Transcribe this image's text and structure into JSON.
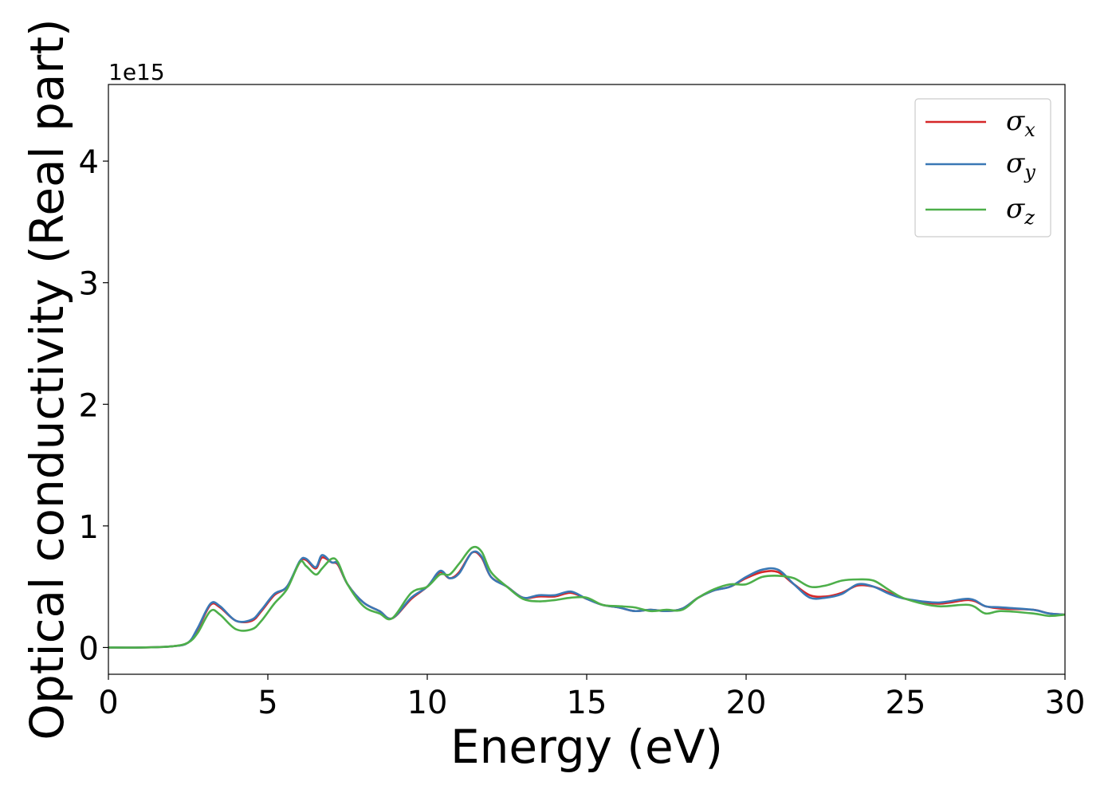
{
  "chart_data": {
    "type": "line",
    "xlabel": "Energy (eV)",
    "ylabel": "Optical conductivity (Real part)",
    "y_offset_label": "1e15",
    "xlim": [
      0,
      30
    ],
    "ylim": [
      -0.22,
      4.63
    ],
    "x_ticks": [
      0,
      5,
      10,
      15,
      20,
      25,
      30
    ],
    "y_ticks": [
      0,
      1,
      2,
      3,
      4
    ],
    "legend_position": "top-right",
    "grid": false,
    "series": [
      {
        "name": "σx",
        "symbol": "σ",
        "subscript": "x",
        "color": "#d62728",
        "points": [
          [
            0,
            0
          ],
          [
            1,
            0
          ],
          [
            2,
            0.01
          ],
          [
            2.5,
            0.04
          ],
          [
            2.8,
            0.15
          ],
          [
            3.2,
            0.35
          ],
          [
            3.5,
            0.33
          ],
          [
            4,
            0.22
          ],
          [
            4.5,
            0.22
          ],
          [
            4.8,
            0.3
          ],
          [
            5.2,
            0.43
          ],
          [
            5.6,
            0.5
          ],
          [
            6,
            0.7
          ],
          [
            6.2,
            0.72
          ],
          [
            6.5,
            0.65
          ],
          [
            6.7,
            0.74
          ],
          [
            7,
            0.7
          ],
          [
            7.2,
            0.68
          ],
          [
            7.5,
            0.52
          ],
          [
            8,
            0.37
          ],
          [
            8.5,
            0.3
          ],
          [
            8.9,
            0.24
          ],
          [
            9.5,
            0.4
          ],
          [
            10,
            0.5
          ],
          [
            10.4,
            0.62
          ],
          [
            10.7,
            0.57
          ],
          [
            11,
            0.62
          ],
          [
            11.4,
            0.78
          ],
          [
            11.7,
            0.74
          ],
          [
            12,
            0.58
          ],
          [
            12.5,
            0.5
          ],
          [
            13,
            0.41
          ],
          [
            13.5,
            0.42
          ],
          [
            14,
            0.42
          ],
          [
            14.5,
            0.45
          ],
          [
            15,
            0.4
          ],
          [
            15.5,
            0.35
          ],
          [
            16,
            0.33
          ],
          [
            16.5,
            0.3
          ],
          [
            17,
            0.31
          ],
          [
            17.5,
            0.3
          ],
          [
            18,
            0.32
          ],
          [
            18.5,
            0.41
          ],
          [
            19,
            0.47
          ],
          [
            19.5,
            0.5
          ],
          [
            20,
            0.57
          ],
          [
            20.5,
            0.62
          ],
          [
            21,
            0.62
          ],
          [
            21.5,
            0.52
          ],
          [
            22,
            0.43
          ],
          [
            22.5,
            0.42
          ],
          [
            23,
            0.45
          ],
          [
            23.5,
            0.51
          ],
          [
            24,
            0.5
          ],
          [
            24.5,
            0.45
          ],
          [
            25,
            0.4
          ],
          [
            26,
            0.36
          ],
          [
            27,
            0.39
          ],
          [
            27.5,
            0.34
          ],
          [
            28,
            0.32
          ],
          [
            29,
            0.31
          ],
          [
            29.5,
            0.28
          ],
          [
            30,
            0.27
          ]
        ]
      },
      {
        "name": "σy",
        "symbol": "σ",
        "subscript": "y",
        "color": "#3a78b5",
        "points": [
          [
            0,
            0
          ],
          [
            1,
            0
          ],
          [
            2,
            0.01
          ],
          [
            2.5,
            0.04
          ],
          [
            2.8,
            0.16
          ],
          [
            3.2,
            0.36
          ],
          [
            3.5,
            0.34
          ],
          [
            4,
            0.22
          ],
          [
            4.5,
            0.23
          ],
          [
            4.8,
            0.31
          ],
          [
            5.2,
            0.44
          ],
          [
            5.6,
            0.5
          ],
          [
            6,
            0.71
          ],
          [
            6.2,
            0.73
          ],
          [
            6.5,
            0.66
          ],
          [
            6.7,
            0.76
          ],
          [
            7,
            0.7
          ],
          [
            7.2,
            0.69
          ],
          [
            7.5,
            0.52
          ],
          [
            8,
            0.37
          ],
          [
            8.5,
            0.3
          ],
          [
            8.9,
            0.24
          ],
          [
            9.5,
            0.41
          ],
          [
            10,
            0.5
          ],
          [
            10.4,
            0.63
          ],
          [
            10.7,
            0.57
          ],
          [
            11,
            0.61
          ],
          [
            11.4,
            0.78
          ],
          [
            11.7,
            0.75
          ],
          [
            12,
            0.58
          ],
          [
            12.5,
            0.5
          ],
          [
            13,
            0.41
          ],
          [
            13.5,
            0.43
          ],
          [
            14,
            0.43
          ],
          [
            14.5,
            0.46
          ],
          [
            15,
            0.4
          ],
          [
            15.5,
            0.35
          ],
          [
            16,
            0.33
          ],
          [
            16.5,
            0.3
          ],
          [
            17,
            0.31
          ],
          [
            17.5,
            0.3
          ],
          [
            18,
            0.32
          ],
          [
            18.5,
            0.41
          ],
          [
            19,
            0.47
          ],
          [
            19.5,
            0.5
          ],
          [
            20,
            0.58
          ],
          [
            20.5,
            0.64
          ],
          [
            21,
            0.64
          ],
          [
            21.5,
            0.52
          ],
          [
            22,
            0.41
          ],
          [
            22.5,
            0.41
          ],
          [
            23,
            0.44
          ],
          [
            23.5,
            0.52
          ],
          [
            24,
            0.5
          ],
          [
            24.5,
            0.44
          ],
          [
            25,
            0.4
          ],
          [
            26,
            0.37
          ],
          [
            27,
            0.4
          ],
          [
            27.5,
            0.34
          ],
          [
            28,
            0.33
          ],
          [
            29,
            0.31
          ],
          [
            29.5,
            0.28
          ],
          [
            30,
            0.27
          ]
        ]
      },
      {
        "name": "σz",
        "symbol": "σ",
        "subscript": "z",
        "color": "#4daf4a",
        "points": [
          [
            0,
            0
          ],
          [
            1,
            0
          ],
          [
            2,
            0.01
          ],
          [
            2.5,
            0.04
          ],
          [
            2.8,
            0.12
          ],
          [
            3.2,
            0.3
          ],
          [
            3.5,
            0.27
          ],
          [
            4,
            0.15
          ],
          [
            4.5,
            0.15
          ],
          [
            4.8,
            0.22
          ],
          [
            5.2,
            0.36
          ],
          [
            5.6,
            0.48
          ],
          [
            6,
            0.7
          ],
          [
            6.2,
            0.67
          ],
          [
            6.5,
            0.6
          ],
          [
            6.7,
            0.65
          ],
          [
            7,
            0.73
          ],
          [
            7.2,
            0.7
          ],
          [
            7.5,
            0.52
          ],
          [
            8,
            0.34
          ],
          [
            8.5,
            0.28
          ],
          [
            8.9,
            0.24
          ],
          [
            9.5,
            0.45
          ],
          [
            10,
            0.5
          ],
          [
            10.4,
            0.6
          ],
          [
            10.7,
            0.6
          ],
          [
            11,
            0.69
          ],
          [
            11.4,
            0.82
          ],
          [
            11.7,
            0.79
          ],
          [
            12,
            0.62
          ],
          [
            12.5,
            0.5
          ],
          [
            13,
            0.4
          ],
          [
            13.5,
            0.38
          ],
          [
            14,
            0.39
          ],
          [
            14.5,
            0.41
          ],
          [
            15,
            0.41
          ],
          [
            15.5,
            0.35
          ],
          [
            16,
            0.34
          ],
          [
            16.5,
            0.33
          ],
          [
            17,
            0.3
          ],
          [
            17.5,
            0.31
          ],
          [
            18,
            0.31
          ],
          [
            18.5,
            0.41
          ],
          [
            19,
            0.48
          ],
          [
            19.5,
            0.52
          ],
          [
            20,
            0.52
          ],
          [
            20.5,
            0.58
          ],
          [
            21,
            0.59
          ],
          [
            21.5,
            0.57
          ],
          [
            22,
            0.5
          ],
          [
            22.5,
            0.51
          ],
          [
            23,
            0.55
          ],
          [
            23.5,
            0.56
          ],
          [
            24,
            0.55
          ],
          [
            24.5,
            0.47
          ],
          [
            25,
            0.4
          ],
          [
            26,
            0.34
          ],
          [
            27,
            0.35
          ],
          [
            27.5,
            0.28
          ],
          [
            28,
            0.3
          ],
          [
            29,
            0.28
          ],
          [
            29.5,
            0.26
          ],
          [
            30,
            0.27
          ]
        ]
      }
    ]
  }
}
